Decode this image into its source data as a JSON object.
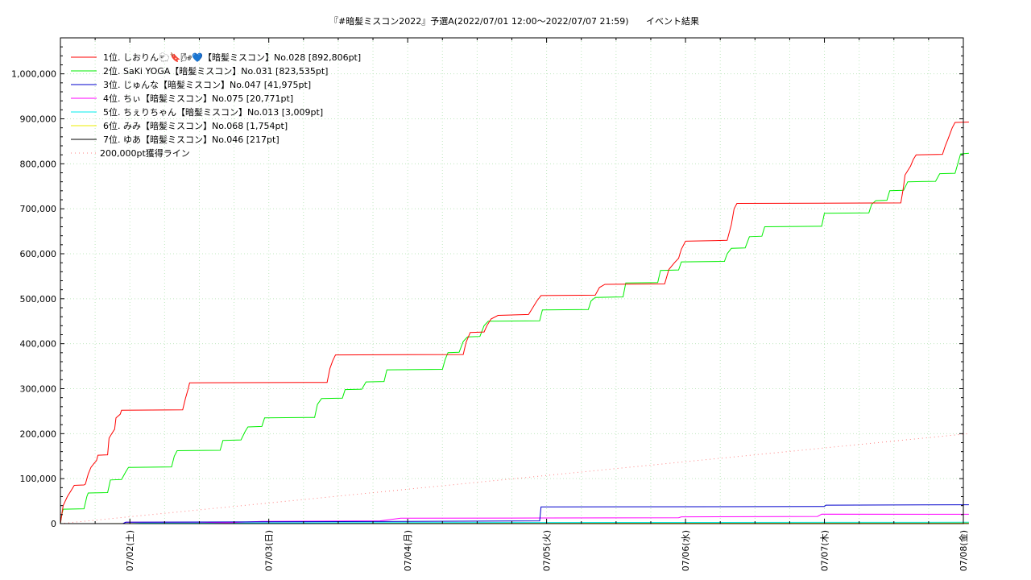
{
  "chart_data": {
    "type": "line",
    "title": "『#暗髪ミスコン2022』予選A(2022/07/01 12:00～2022/07/07 21:59)",
    "subtitle": "イベント結果",
    "ylim": [
      0,
      1080000
    ],
    "xlim": [
      0,
      6.5
    ],
    "x_unit": "days since 2022/07/01 12:00",
    "grid": true,
    "legend": "top-left",
    "y_ticks": [
      {
        "value": 0,
        "label": "0"
      },
      {
        "value": 100000,
        "label": "100,000"
      },
      {
        "value": 200000,
        "label": "200,000"
      },
      {
        "value": 300000,
        "label": "300,000"
      },
      {
        "value": 400000,
        "label": "400,000"
      },
      {
        "value": 500000,
        "label": "500,000"
      },
      {
        "value": 600000,
        "label": "600,000"
      },
      {
        "value": 700000,
        "label": "700,000"
      },
      {
        "value": 800000,
        "label": "800,000"
      },
      {
        "value": 900000,
        "label": "900,000"
      },
      {
        "value": 1000000,
        "label": "1,000,000"
      }
    ],
    "x_ticks": [
      {
        "value": 0.5,
        "label": "07/02(土)"
      },
      {
        "value": 1.5,
        "label": "07/03(日)"
      },
      {
        "value": 2.5,
        "label": "07/04(月)"
      },
      {
        "value": 3.5,
        "label": "07/05(火)"
      },
      {
        "value": 4.5,
        "label": "07/06(水)"
      },
      {
        "value": 5.5,
        "label": "07/07(木)"
      },
      {
        "value": 6.5,
        "label": "07/08(金)"
      }
    ],
    "series": [
      {
        "name": "1位. しおりん🐑🔖🌬💙【暗髪ミスコン】No.028 [892,806pt]",
        "color": "#ff0000",
        "style": "solid",
        "points": [
          [
            0,
            0
          ],
          [
            0.02,
            40000
          ],
          [
            0.05,
            60000
          ],
          [
            0.08,
            75000
          ],
          [
            0.1,
            85000
          ],
          [
            0.17,
            86000
          ],
          [
            0.18,
            88000
          ],
          [
            0.2,
            110000
          ],
          [
            0.22,
            125000
          ],
          [
            0.24,
            133000
          ],
          [
            0.26,
            140000
          ],
          [
            0.27,
            152000
          ],
          [
            0.34,
            153000
          ],
          [
            0.35,
            190000
          ],
          [
            0.37,
            200000
          ],
          [
            0.39,
            210000
          ],
          [
            0.4,
            235000
          ],
          [
            0.43,
            243000
          ],
          [
            0.44,
            252000
          ],
          [
            0.88,
            253000
          ],
          [
            0.9,
            278000
          ],
          [
            0.92,
            300000
          ],
          [
            0.93,
            313000
          ],
          [
            1.92,
            314000
          ],
          [
            1.94,
            345000
          ],
          [
            1.96,
            362000
          ],
          [
            1.98,
            375000
          ],
          [
            2.9,
            376000
          ],
          [
            2.92,
            403000
          ],
          [
            2.95,
            425000
          ],
          [
            3.05,
            426000
          ],
          [
            3.07,
            440000
          ],
          [
            3.1,
            455000
          ],
          [
            3.15,
            463000
          ],
          [
            3.37,
            465000
          ],
          [
            3.4,
            480000
          ],
          [
            3.43,
            495000
          ],
          [
            3.46,
            507000
          ],
          [
            3.85,
            508000
          ],
          [
            3.88,
            525000
          ],
          [
            3.92,
            532000
          ],
          [
            4.35,
            533000
          ],
          [
            4.38,
            565000
          ],
          [
            4.42,
            580000
          ],
          [
            4.45,
            590000
          ],
          [
            4.47,
            610000
          ],
          [
            4.5,
            628000
          ],
          [
            4.8,
            630000
          ],
          [
            4.83,
            665000
          ],
          [
            4.85,
            700000
          ],
          [
            4.87,
            712000
          ],
          [
            6.05,
            713000
          ],
          [
            6.07,
            750000
          ],
          [
            6.08,
            775000
          ],
          [
            6.12,
            795000
          ],
          [
            6.14,
            810000
          ],
          [
            6.16,
            820000
          ],
          [
            6.35,
            821000
          ],
          [
            6.37,
            840000
          ],
          [
            6.39,
            855000
          ],
          [
            6.42,
            880000
          ],
          [
            6.44,
            892000
          ],
          [
            6.54,
            892806
          ]
        ]
      },
      {
        "name": "2位. SaKi YOGA【暗髪ミスコン】No.031 [823,535pt]",
        "color": "#00ee00",
        "style": "solid",
        "points": [
          [
            0,
            0
          ],
          [
            0.01,
            20000
          ],
          [
            0.02,
            32000
          ],
          [
            0.17,
            33000
          ],
          [
            0.19,
            60000
          ],
          [
            0.2,
            68000
          ],
          [
            0.34,
            69000
          ],
          [
            0.36,
            97000
          ],
          [
            0.44,
            98000
          ],
          [
            0.47,
            115000
          ],
          [
            0.49,
            125000
          ],
          [
            0.8,
            126000
          ],
          [
            0.82,
            150000
          ],
          [
            0.84,
            162000
          ],
          [
            1.15,
            163000
          ],
          [
            1.17,
            185000
          ],
          [
            1.3,
            186000
          ],
          [
            1.33,
            205000
          ],
          [
            1.35,
            215000
          ],
          [
            1.45,
            216000
          ],
          [
            1.47,
            235000
          ],
          [
            1.83,
            236000
          ],
          [
            1.85,
            265000
          ],
          [
            1.88,
            278000
          ],
          [
            2.03,
            279000
          ],
          [
            2.05,
            298000
          ],
          [
            2.17,
            299000
          ],
          [
            2.2,
            315000
          ],
          [
            2.33,
            316000
          ],
          [
            2.35,
            342000
          ],
          [
            2.75,
            343000
          ],
          [
            2.77,
            365000
          ],
          [
            2.79,
            380000
          ],
          [
            2.87,
            381000
          ],
          [
            2.9,
            405000
          ],
          [
            2.93,
            415000
          ],
          [
            3.02,
            416000
          ],
          [
            3.05,
            440000
          ],
          [
            3.08,
            450000
          ],
          [
            3.45,
            451000
          ],
          [
            3.47,
            475000
          ],
          [
            3.8,
            476000
          ],
          [
            3.82,
            495000
          ],
          [
            3.85,
            503000
          ],
          [
            4.05,
            504000
          ],
          [
            4.07,
            535000
          ],
          [
            4.3,
            536000
          ],
          [
            4.32,
            563000
          ],
          [
            4.45,
            564000
          ],
          [
            4.47,
            582000
          ],
          [
            4.78,
            583000
          ],
          [
            4.8,
            600000
          ],
          [
            4.83,
            612000
          ],
          [
            4.93,
            613000
          ],
          [
            4.96,
            638000
          ],
          [
            5.05,
            639000
          ],
          [
            5.07,
            660000
          ],
          [
            5.48,
            661000
          ],
          [
            5.5,
            690000
          ],
          [
            5.82,
            691000
          ],
          [
            5.84,
            710000
          ],
          [
            5.87,
            718000
          ],
          [
            5.95,
            719000
          ],
          [
            5.97,
            740000
          ],
          [
            6.07,
            741000
          ],
          [
            6.1,
            760000
          ],
          [
            6.3,
            761000
          ],
          [
            6.33,
            778000
          ],
          [
            6.44,
            779000
          ],
          [
            6.46,
            800000
          ],
          [
            6.48,
            822000
          ],
          [
            6.54,
            823535
          ]
        ]
      },
      {
        "name": "3位. じゅんな【暗髪ミスコン】No.047 [41,975pt]",
        "color": "#0000cc",
        "style": "solid",
        "points": [
          [
            0,
            0
          ],
          [
            0.45,
            0
          ],
          [
            0.47,
            3000
          ],
          [
            1.5,
            4000
          ],
          [
            2.5,
            5000
          ],
          [
            3.45,
            6000
          ],
          [
            3.46,
            37000
          ],
          [
            5.5,
            38000
          ],
          [
            5.51,
            41000
          ],
          [
            6.54,
            41975
          ]
        ]
      },
      {
        "name": "4位. ちぃ【暗髪ミスコン】No.075 [20,771pt]",
        "color": "#ff00ff",
        "style": "solid",
        "points": [
          [
            0,
            0
          ],
          [
            0.45,
            0
          ],
          [
            0.47,
            3000
          ],
          [
            1.0,
            3000
          ],
          [
            1.2,
            2000
          ],
          [
            1.45,
            5000
          ],
          [
            2.3,
            6000
          ],
          [
            2.4,
            10000
          ],
          [
            2.45,
            12000
          ],
          [
            3.5,
            12500
          ],
          [
            4.45,
            13000
          ],
          [
            4.47,
            15000
          ],
          [
            5.45,
            16000
          ],
          [
            5.48,
            21000
          ],
          [
            6.54,
            20771
          ]
        ]
      },
      {
        "name": "5位. ちぇりちゃん【暗髪ミスコン】No.013 [3,009pt]",
        "color": "#00eeee",
        "style": "solid",
        "points": [
          [
            0,
            0
          ],
          [
            0.5,
            0
          ],
          [
            0.6,
            1000
          ],
          [
            2.0,
            2000
          ],
          [
            3.5,
            2500
          ],
          [
            6.54,
            3009
          ]
        ]
      },
      {
        "name": "6位. みみ【暗髪ミスコン】No.068 [1,754pt]",
        "color": "#eeee00",
        "style": "solid",
        "points": [
          [
            0,
            0
          ],
          [
            1.0,
            300
          ],
          [
            3.0,
            800
          ],
          [
            5.0,
            1200
          ],
          [
            6.54,
            1754
          ]
        ]
      },
      {
        "name": "7位. ゆあ【暗髪ミスコン】No.046 [217pt]",
        "color": "#000000",
        "style": "solid",
        "points": [
          [
            0,
            0
          ],
          [
            3.0,
            100
          ],
          [
            6.54,
            217
          ]
        ]
      },
      {
        "name": "200,000pt獲得ライン",
        "color": "#ff8080",
        "style": "dotted",
        "points": [
          [
            0,
            0
          ],
          [
            6.54,
            200000
          ]
        ]
      }
    ]
  }
}
